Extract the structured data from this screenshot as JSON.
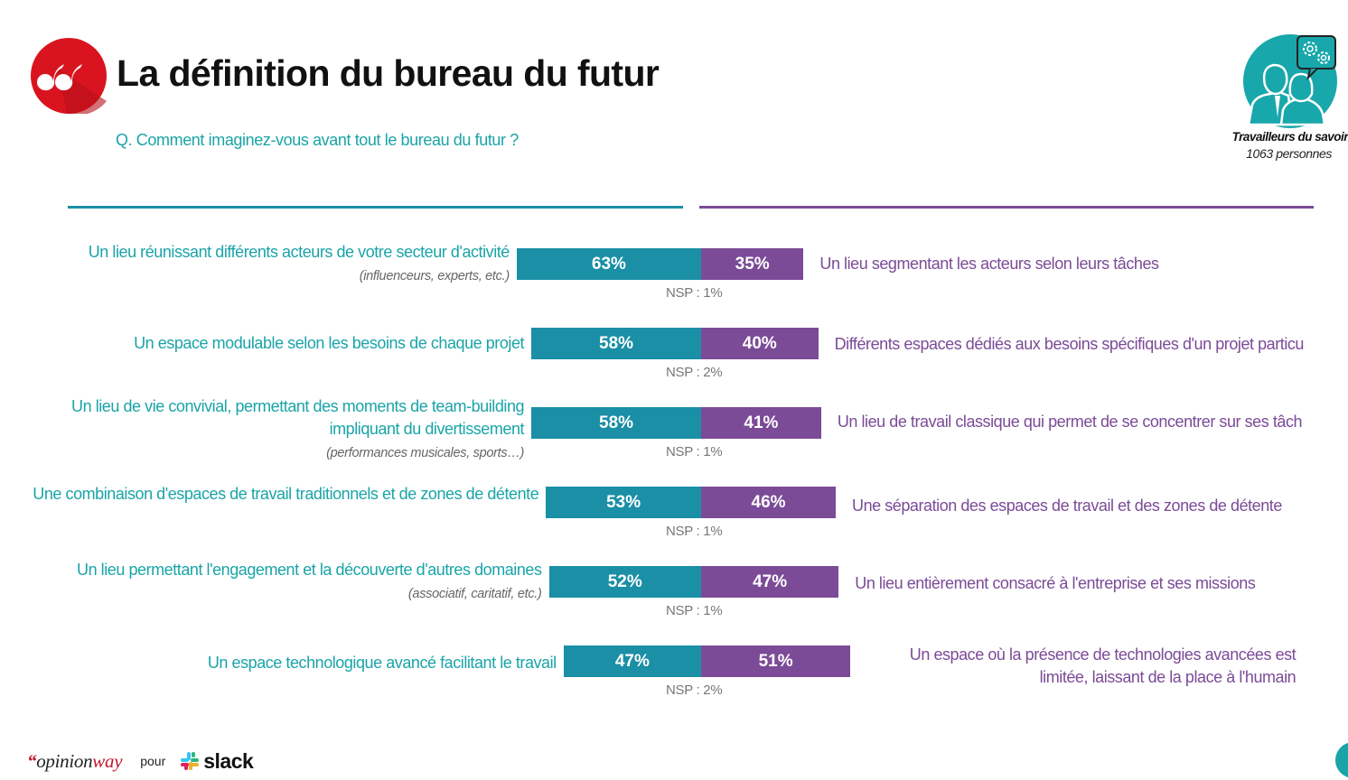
{
  "header": {
    "title": "La définition du bureau du futur",
    "question": "Q. Comment imaginez-vous avant tout le bureau du futur ?",
    "quote_icon": "quote-icon"
  },
  "persona": {
    "icon": "knowledge-workers-icon",
    "title": "Travailleurs du savoir",
    "count": "1063 personnes"
  },
  "colors": {
    "left": "#1a8fa6",
    "right": "#7b4b97",
    "left_text": "#1aa4a8",
    "right_text": "#7b4b97",
    "brand_red": "#c0182e"
  },
  "chart_data": {
    "type": "bar",
    "subtype": "diverging-stacked-horizontal",
    "title": "La définition du bureau du futur",
    "question": "Q. Comment imaginez-vous avant tout le bureau du futur ?",
    "unit": "%",
    "rows": [
      {
        "left_label": "Un lieu réunissant différents acteurs de votre secteur d'activité",
        "left_note": "(influenceurs, experts, etc.)",
        "left_value": 63,
        "right_label": "Un lieu segmentant les acteurs selon leurs tâches",
        "right_value": 35,
        "nsp": "NSP : 1%"
      },
      {
        "left_label": "Un espace modulable selon les besoins de chaque projet",
        "left_note": "",
        "left_value": 58,
        "right_label": "Différents espaces dédiés aux besoins spécifiques d'un projet particu",
        "right_value": 40,
        "nsp": "NSP : 2%"
      },
      {
        "left_label": "Un lieu de vie convivial, permettant des moments de team-building impliquant du divertissement",
        "left_note": "(performances musicales, sports…)",
        "left_value": 58,
        "right_label": "Un lieu de travail classique qui permet de se concentrer sur ses tâch",
        "right_value": 41,
        "nsp": "NSP : 1%"
      },
      {
        "left_label": "Une combinaison d'espaces de travail traditionnels et de zones de détente",
        "left_note": "",
        "left_value": 53,
        "right_label": "Une séparation des espaces de travail et des zones de détente",
        "right_value": 46,
        "nsp": "NSP : 1%"
      },
      {
        "left_label": "Un lieu permettant l'engagement et la découverte d'autres domaines",
        "left_note": "(associatif, caritatif, etc.)",
        "left_value": 52,
        "right_label": "Un lieu entièrement consacré à l'entreprise et ses missions",
        "right_value": 47,
        "nsp": "NSP : 1%"
      },
      {
        "left_label": "Un espace technologique avancé facilitant le travail",
        "left_note": "",
        "left_value": 47,
        "right_label": "Un espace où la présence de technologies avancées est limitée, laissant de la place à l'humain",
        "right_value": 51,
        "nsp": "NSP : 2%"
      }
    ]
  },
  "footer": {
    "brand_quote": "“",
    "brand_opinion": "opinion",
    "brand_way": "way",
    "pour": "pour",
    "partner": "slack",
    "partner_icon": "slack-logo-icon"
  }
}
